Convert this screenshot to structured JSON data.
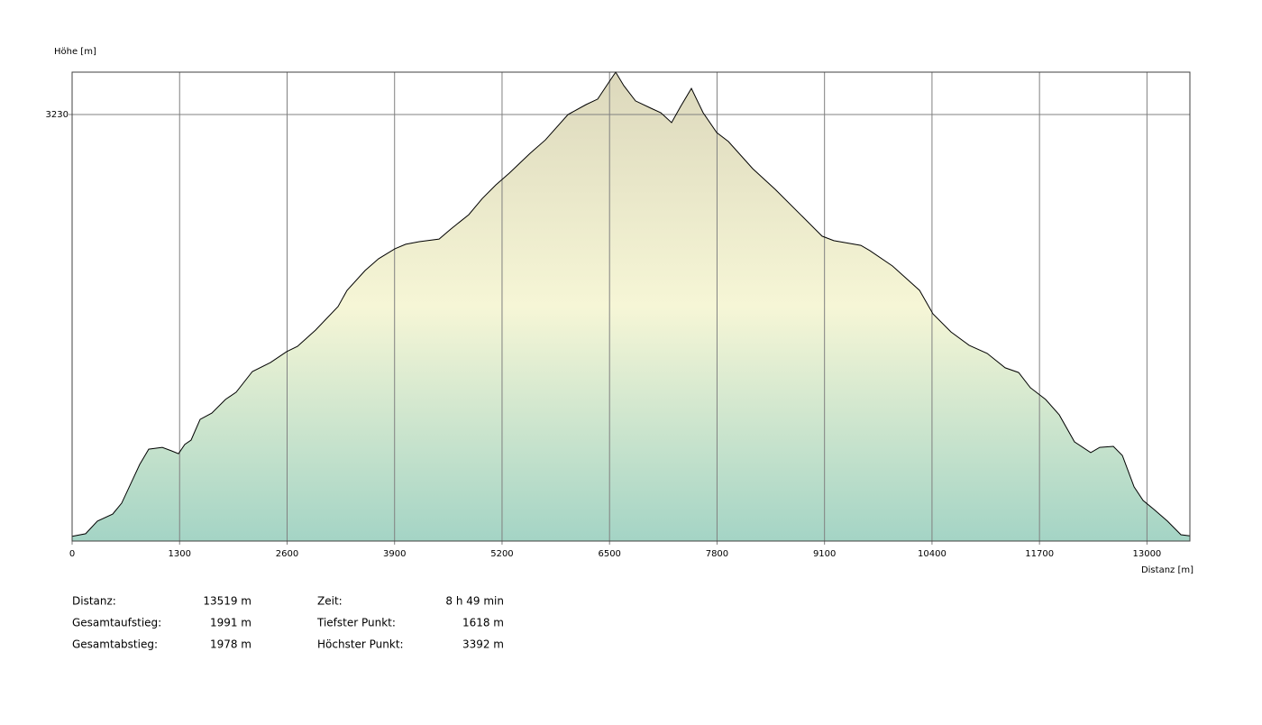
{
  "chart_data": {
    "type": "area",
    "y_label": "Höhe [m]",
    "x_label": "Distanz [m]",
    "x": [
      0,
      164,
      305,
      491,
      600,
      741,
      818,
      927,
      1090,
      1199,
      1287,
      1363,
      1439,
      1548,
      1690,
      1854,
      1984,
      2181,
      2399,
      2595,
      2726,
      2944,
      3216,
      3325,
      3543,
      3707,
      3903,
      4034,
      4198,
      4438,
      4579,
      4797,
      4961,
      5124,
      5288,
      5539,
      5724,
      5997,
      6215,
      6356,
      6487,
      6574,
      6673,
      6814,
      7000,
      7120,
      7250,
      7360,
      7490,
      7632,
      7796,
      7937,
      8232,
      8504,
      8831,
      9071,
      9213,
      9540,
      9649,
      9922,
      10249,
      10412,
      10630,
      10849,
      11067,
      11285,
      11448,
      11590,
      11775,
      11939,
      12124,
      12320,
      12429,
      12593,
      12702,
      12844,
      12953,
      13084,
      13247,
      13411,
      13519
    ],
    "values": [
      1618,
      1628,
      1676,
      1703,
      1745,
      1841,
      1893,
      1951,
      1958,
      1945,
      1934,
      1969,
      1986,
      2065,
      2089,
      2141,
      2169,
      2248,
      2282,
      2324,
      2344,
      2406,
      2496,
      2558,
      2634,
      2679,
      2717,
      2734,
      2744,
      2754,
      2792,
      2847,
      2909,
      2961,
      3006,
      3082,
      3133,
      3230,
      3268,
      3289,
      3351,
      3392,
      3340,
      3282,
      3254,
      3237,
      3199,
      3261,
      3330,
      3237,
      3161,
      3127,
      3023,
      2944,
      2841,
      2765,
      2748,
      2730,
      2710,
      2651,
      2558,
      2468,
      2399,
      2348,
      2317,
      2262,
      2244,
      2186,
      2141,
      2082,
      1979,
      1938,
      1958,
      1962,
      1927,
      1807,
      1755,
      1721,
      1676,
      1624,
      1620
    ],
    "xlim": [
      0,
      13519
    ],
    "xticks": [
      0,
      1300,
      2600,
      3900,
      5200,
      6500,
      7800,
      9100,
      10400,
      11700,
      13000
    ],
    "ylim": [
      1600,
      3392
    ],
    "yticks": [
      3230
    ],
    "grid": true,
    "line_color": "#000000",
    "grid_color": "#808080",
    "fill_gradient": [
      "#dcd8bc",
      "#f6f6d6",
      "#a4d4c5"
    ]
  },
  "summary": {
    "left": [
      [
        "Distanz:",
        "13519 m"
      ],
      [
        "Gesamtaufstieg:",
        "1991 m"
      ],
      [
        "Gesamtabstieg:",
        "1978 m"
      ]
    ],
    "right": [
      [
        "Zeit:",
        "8 h 49 min"
      ],
      [
        "Tiefster Punkt:",
        "1618 m"
      ],
      [
        "Höchster Punkt:",
        "3392 m"
      ]
    ]
  }
}
